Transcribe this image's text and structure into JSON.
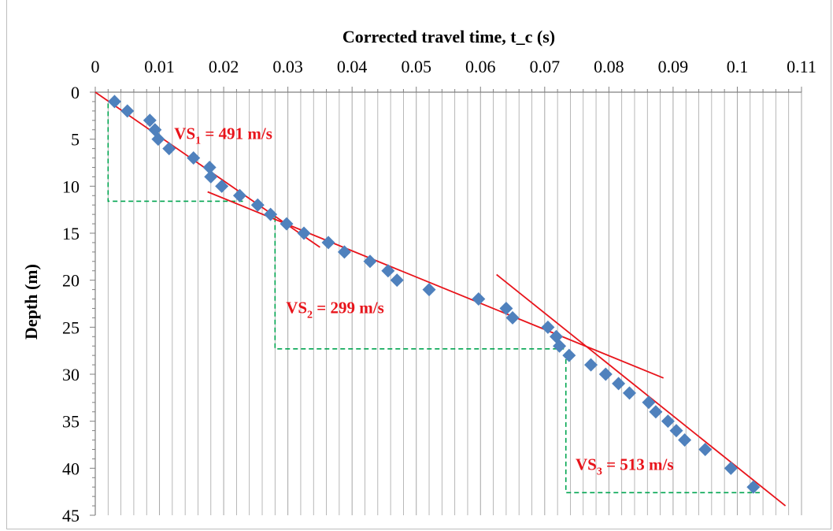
{
  "chart_data": {
    "type": "scatter",
    "title": "",
    "xlabel": "Corrected travel time, t_c (s)",
    "ylabel": "Depth (m)",
    "x_axis_position": "top",
    "y_axis_inverted": true,
    "xlim": [
      0,
      0.11
    ],
    "ylim": [
      0,
      45
    ],
    "x_ticks": [
      "0",
      "0.01",
      "0.02",
      "0.03",
      "0.04",
      "0.05",
      "0.06",
      "0.07",
      "0.08",
      "0.09",
      "0.1",
      "0.11"
    ],
    "y_ticks": [
      "0",
      "5",
      "10",
      "15",
      "20",
      "25",
      "30",
      "35",
      "40",
      "45"
    ],
    "grid": "vertical major and minor lines",
    "colors": {
      "points": "#4f81bd",
      "fit_lines": "#e8141b",
      "layer_boundaries": "#00a550",
      "grid": "#a6a6a6"
    },
    "points": [
      {
        "x": 0.003,
        "y": 1
      },
      {
        "x": 0.005,
        "y": 2
      },
      {
        "x": 0.0085,
        "y": 3
      },
      {
        "x": 0.0093,
        "y": 4
      },
      {
        "x": 0.0098,
        "y": 5
      },
      {
        "x": 0.0115,
        "y": 6
      },
      {
        "x": 0.0153,
        "y": 7
      },
      {
        "x": 0.0178,
        "y": 8
      },
      {
        "x": 0.018,
        "y": 9
      },
      {
        "x": 0.0197,
        "y": 10
      },
      {
        "x": 0.0225,
        "y": 11
      },
      {
        "x": 0.0253,
        "y": 12
      },
      {
        "x": 0.0273,
        "y": 13
      },
      {
        "x": 0.0298,
        "y": 14
      },
      {
        "x": 0.0325,
        "y": 15
      },
      {
        "x": 0.0363,
        "y": 16
      },
      {
        "x": 0.0388,
        "y": 17
      },
      {
        "x": 0.0428,
        "y": 18
      },
      {
        "x": 0.0456,
        "y": 19
      },
      {
        "x": 0.047,
        "y": 20
      },
      {
        "x": 0.052,
        "y": 21
      },
      {
        "x": 0.0597,
        "y": 22
      },
      {
        "x": 0.064,
        "y": 23
      },
      {
        "x": 0.065,
        "y": 24
      },
      {
        "x": 0.0705,
        "y": 25
      },
      {
        "x": 0.0718,
        "y": 26
      },
      {
        "x": 0.0723,
        "y": 27
      },
      {
        "x": 0.0738,
        "y": 28
      },
      {
        "x": 0.0772,
        "y": 29
      },
      {
        "x": 0.0795,
        "y": 30
      },
      {
        "x": 0.0815,
        "y": 31
      },
      {
        "x": 0.0832,
        "y": 32
      },
      {
        "x": 0.0862,
        "y": 33
      },
      {
        "x": 0.0873,
        "y": 34
      },
      {
        "x": 0.0892,
        "y": 35
      },
      {
        "x": 0.0905,
        "y": 36
      },
      {
        "x": 0.0918,
        "y": 37
      },
      {
        "x": 0.095,
        "y": 38
      },
      {
        "x": 0.099,
        "y": 40
      },
      {
        "x": 0.1025,
        "y": 42
      }
    ],
    "fit_lines": [
      {
        "x": [
          0.0,
          0.035
        ],
        "y": [
          0.0,
          16.5
        ]
      },
      {
        "x": [
          0.0175,
          0.0885
        ],
        "y": [
          10.6,
          30.4
        ]
      },
      {
        "x": [
          0.0625,
          0.1075
        ],
        "y": [
          19.4,
          44.0
        ]
      }
    ],
    "layer_boundaries": [
      {
        "x": [
          0.002,
          0.002,
          0.023
        ],
        "y": [
          1.2,
          11.6,
          11.6
        ]
      },
      {
        "x": [
          0.028,
          0.028,
          0.073
        ],
        "y": [
          13.3,
          27.3,
          27.3
        ]
      },
      {
        "x": [
          0.0733,
          0.0733,
          0.1035
        ],
        "y": [
          28.4,
          42.6,
          42.6
        ]
      }
    ],
    "annotations": [
      {
        "main": "VS",
        "sub": "1",
        "rest": " = 491 m/s",
        "x": 0.0123,
        "y": 4.4
      },
      {
        "main": "VS",
        "sub": "2",
        "rest": " = 299 m/s",
        "x": 0.0297,
        "y": 22.9
      },
      {
        "main": "VS",
        "sub": "3",
        "rest": " = 513 m/s",
        "x": 0.0748,
        "y": 39.6
      }
    ]
  }
}
